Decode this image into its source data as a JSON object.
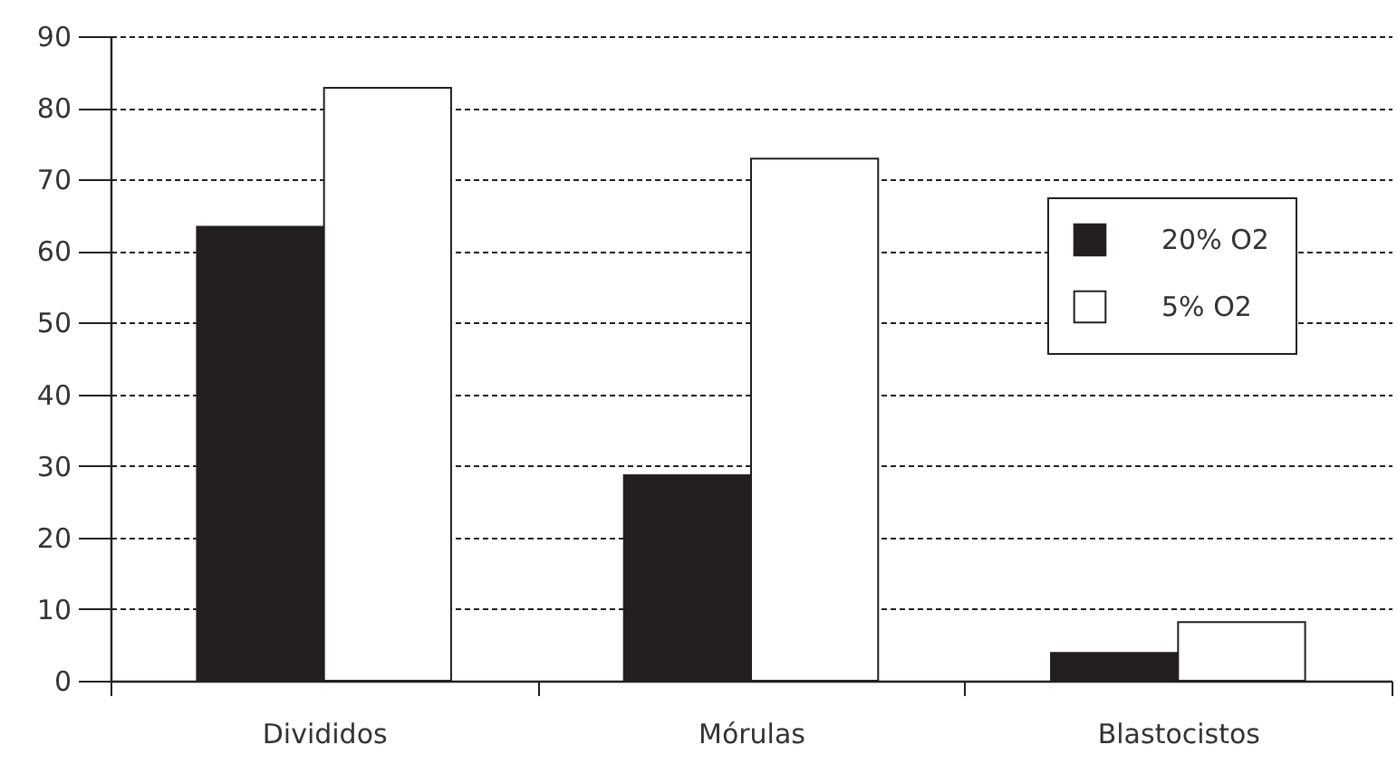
{
  "chart_data": {
    "type": "bar",
    "categories": [
      "Divididos",
      "Mórulas",
      "Blastocistos"
    ],
    "series": [
      {
        "name": "20% O2",
        "color": "#231f20",
        "values": [
          63.4,
          28.7,
          3.9
        ]
      },
      {
        "name": "5% O2",
        "color": "#ffffff",
        "values": [
          82.8,
          72.9,
          8.2
        ]
      }
    ],
    "ylim": [
      0,
      90
    ],
    "yticks": [
      0,
      10,
      20,
      30,
      40,
      50,
      60,
      70,
      80,
      90
    ],
    "grid": "y",
    "legend": "right"
  }
}
